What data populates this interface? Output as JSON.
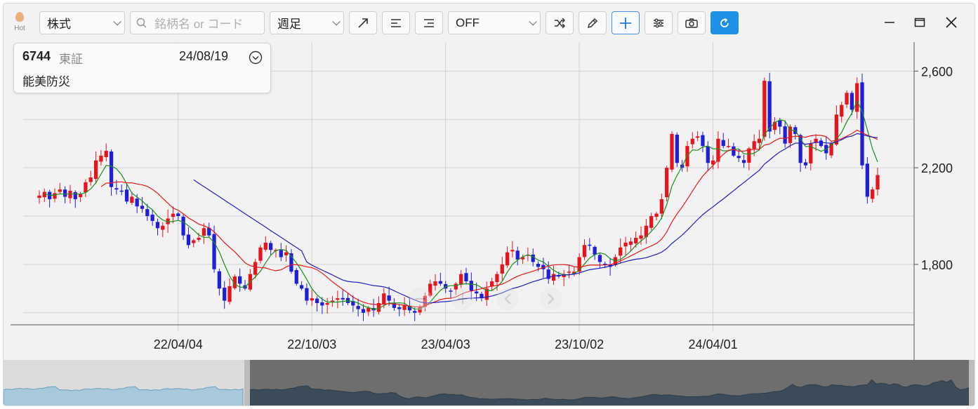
{
  "toolbar": {
    "hot_label": "Hot",
    "type_select": "株式",
    "search_placeholder": "銘柄名 or コード",
    "period_select": "週足",
    "indicator_select": "OFF"
  },
  "info": {
    "code": "6744",
    "market": "東証",
    "date": "24/08/19",
    "name": "能美防災"
  },
  "chart_data": {
    "type": "candlestick",
    "interval": "weekly",
    "ylim": [
      1550,
      2720
    ],
    "y_ticks": [
      1800,
      2200,
      2600
    ],
    "y_tick_labels": [
      "1,800",
      "2,200",
      "2,600"
    ],
    "x_tick_labels": [
      "22/04/04",
      "22/10/03",
      "23/04/03",
      "23/10/02",
      "24/04/01"
    ],
    "grid": true,
    "colors": {
      "up": "#e8141c",
      "down": "#1f1fd8",
      "ma_short": "#1a8f1a",
      "ma_mid": "#e51a1a",
      "ma_long": "#2020c0",
      "background": "#f2f2f2",
      "grid": "#d2d2d2"
    },
    "close": [
      2085,
      2100,
      2070,
      2095,
      2110,
      2080,
      2105,
      2070,
      2090,
      2140,
      2160,
      2230,
      2250,
      2270,
      2120,
      2110,
      2105,
      2060,
      2080,
      2040,
      2030,
      2000,
      1980,
      1950,
      1960,
      1990,
      2010,
      2000,
      1920,
      1880,
      1900,
      1910,
      1950,
      1920,
      1780,
      1700,
      1650,
      1710,
      1750,
      1720,
      1700,
      1760,
      1810,
      1870,
      1890,
      1860,
      1860,
      1830,
      1850,
      1770,
      1720,
      1700,
      1650,
      1660,
      1640,
      1630,
      1640,
      1650,
      1660,
      1655,
      1640,
      1630,
      1615,
      1600,
      1620,
      1610,
      1640,
      1680,
      1650,
      1620,
      1615,
      1630,
      1610,
      1600,
      1625,
      1670,
      1720,
      1730,
      1720,
      1700,
      1690,
      1720,
      1760,
      1730,
      1690,
      1680,
      1660,
      1700,
      1730,
      1760,
      1800,
      1850,
      1860,
      1820,
      1830,
      1840,
      1810,
      1790,
      1780,
      1740,
      1760,
      1750,
      1760,
      1770,
      1770,
      1830,
      1880,
      1880,
      1840,
      1810,
      1800,
      1790,
      1830,
      1870,
      1890,
      1895,
      1910,
      1920,
      1960,
      2000,
      2010,
      2070,
      2200,
      2340,
      2220,
      2200,
      2290,
      2320,
      2330,
      2290,
      2220,
      2230,
      2320,
      2290,
      2290,
      2250,
      2240,
      2220,
      2280,
      2310,
      2320,
      2560,
      2350,
      2390,
      2370,
      2300,
      2370,
      2340,
      2220,
      2210,
      2300,
      2320,
      2290,
      2260,
      2300,
      2420,
      2460,
      2510,
      2440,
      2550,
      2210,
      2080,
      2110,
      2170
    ],
    "ma_short_start": 1,
    "ma_short_period": 5,
    "ma_mid_start": 12,
    "ma_mid_period": 13,
    "ma_long_start": 30,
    "ma_long_period": 26,
    "ma_long_early": [
      2150,
      2136,
      2122,
      2108,
      2094,
      2080,
      2066,
      2052,
      2038,
      2024,
      2010,
      1996,
      1982,
      1968,
      1954,
      1940,
      1926,
      1912,
      1898,
      1884,
      1870,
      1856
    ]
  },
  "navigator": {
    "series_min": 1600,
    "series_max": 2600
  }
}
